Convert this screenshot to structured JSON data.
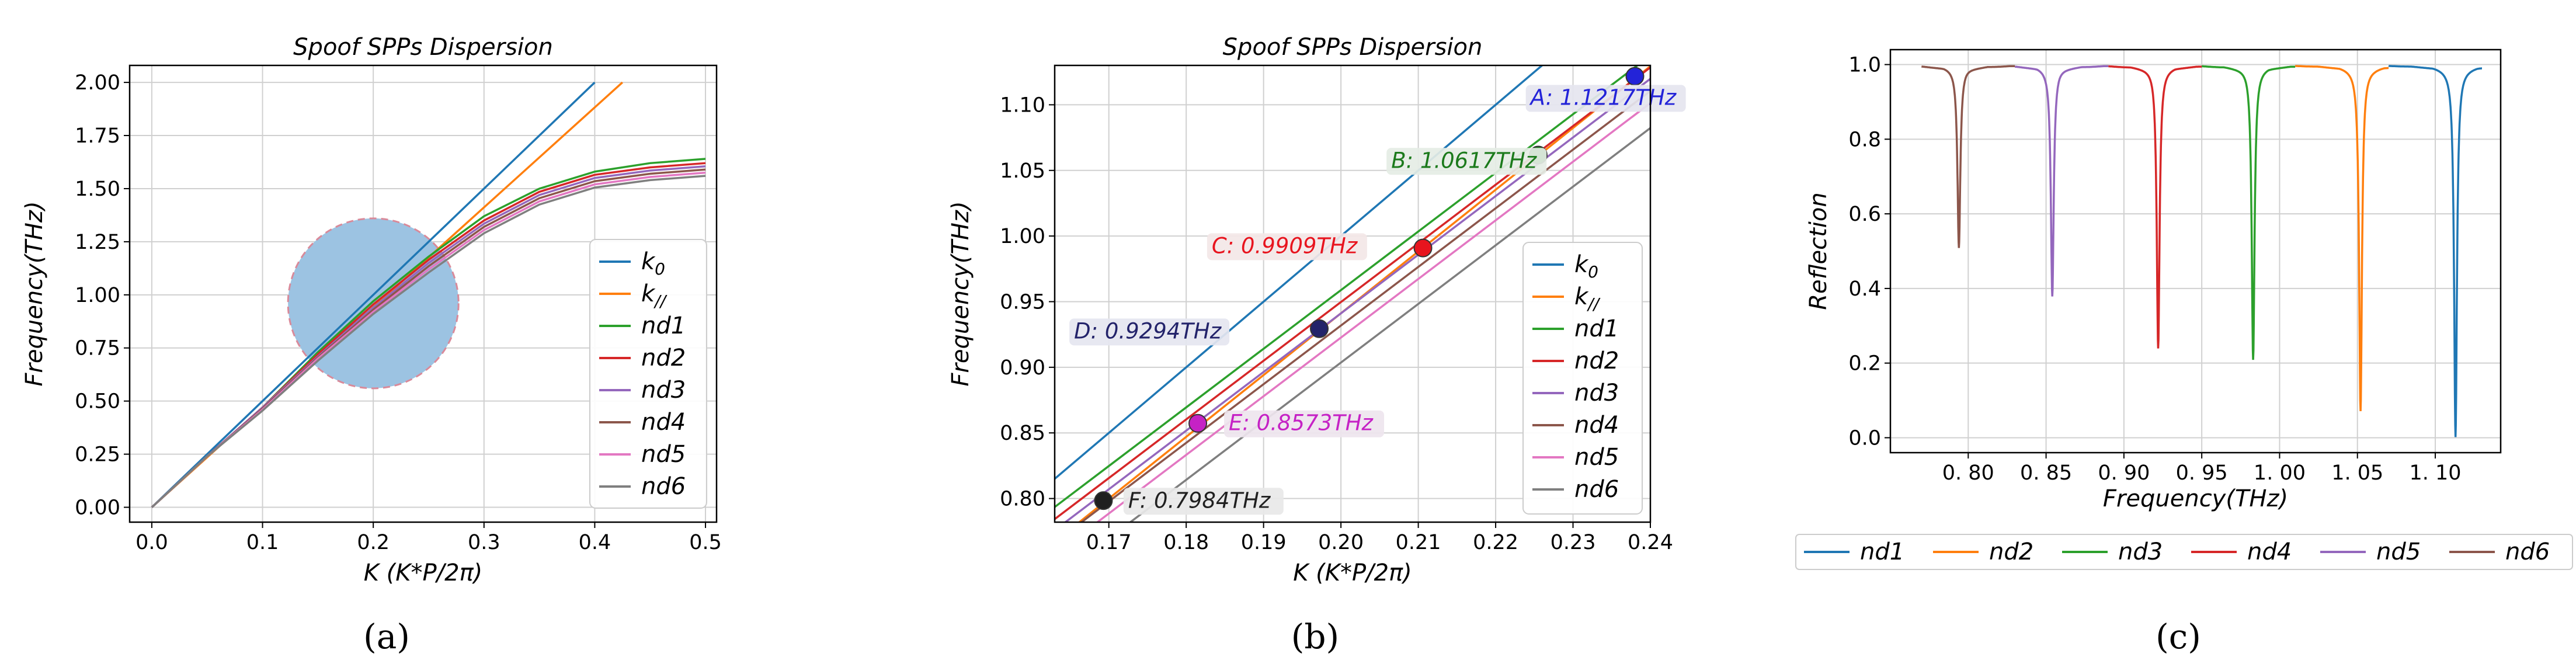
{
  "colors": {
    "c0": "#1f77b4",
    "c1": "#ff7f0e",
    "c2": "#2ca02c",
    "c3": "#d62728",
    "c4": "#9467bd",
    "c5": "#8c564b",
    "c6": "#e377c2",
    "c7": "#7f7f7f",
    "circle_fill": "#9cc3e2",
    "circle_edge": "#d98a9a",
    "grid": "#d0d0d0"
  },
  "panel_labels": [
    "(a)",
    "(b)",
    "(c)"
  ],
  "chart_data": [
    {
      "type": "line",
      "title": "Spoof SPPs Dispersion",
      "xlabel": "K (K*P/2π)",
      "ylabel": "Frequency(THz)",
      "xlim": [
        -0.02,
        0.51
      ],
      "ylim": [
        -0.07,
        2.08
      ],
      "xticks": [
        0.0,
        0.1,
        0.2,
        0.3,
        0.4,
        0.5
      ],
      "xticklabels": [
        "0.0",
        "0.1",
        "0.2",
        "0.3",
        "0.4",
        "0.5"
      ],
      "yticks": [
        0.0,
        0.25,
        0.5,
        0.75,
        1.0,
        1.25,
        1.5,
        1.75,
        2.0
      ],
      "yticklabels": [
        "0.00",
        "0.25",
        "0.50",
        "0.75",
        "1.00",
        "1.25",
        "1.50",
        "1.75",
        "2.00"
      ],
      "grid": true,
      "legend_position": "lower-right",
      "legend": [
        "k₀",
        "k//",
        "nd1",
        "nd2",
        "nd3",
        "nd4",
        "nd5",
        "nd6"
      ],
      "circle": {
        "center": [
          0.2,
          0.96
        ],
        "radius_x": 0.077,
        "radius_y": 0.4
      },
      "series": [
        {
          "name": "k₀",
          "x": [
            0.0,
            0.4
          ],
          "y": [
            0.0,
            2.0
          ]
        },
        {
          "name": "k//",
          "x": [
            0.0,
            0.425
          ],
          "y": [
            0.0,
            2.0
          ]
        },
        {
          "name": "nd1",
          "x": [
            0.0,
            0.05,
            0.1,
            0.15,
            0.2,
            0.25,
            0.3,
            0.35,
            0.4,
            0.45,
            0.5
          ],
          "y": [
            0.0,
            0.24,
            0.47,
            0.73,
            0.97,
            1.18,
            1.37,
            1.5,
            1.58,
            1.62,
            1.64
          ]
        },
        {
          "name": "nd2",
          "x": [
            0.0,
            0.05,
            0.1,
            0.15,
            0.2,
            0.25,
            0.3,
            0.35,
            0.4,
            0.45,
            0.5
          ],
          "y": [
            0.0,
            0.24,
            0.47,
            0.72,
            0.955,
            1.165,
            1.35,
            1.485,
            1.565,
            1.6,
            1.62
          ]
        },
        {
          "name": "nd3",
          "x": [
            0.0,
            0.05,
            0.1,
            0.15,
            0.2,
            0.25,
            0.3,
            0.35,
            0.4,
            0.45,
            0.5
          ],
          "y": [
            0.0,
            0.24,
            0.47,
            0.71,
            0.94,
            1.15,
            1.335,
            1.47,
            1.55,
            1.585,
            1.605
          ]
        },
        {
          "name": "nd4",
          "x": [
            0.0,
            0.05,
            0.1,
            0.15,
            0.2,
            0.25,
            0.3,
            0.35,
            0.4,
            0.45,
            0.5
          ],
          "y": [
            0.0,
            0.24,
            0.465,
            0.705,
            0.93,
            1.135,
            1.32,
            1.455,
            1.535,
            1.57,
            1.59
          ]
        },
        {
          "name": "nd5",
          "x": [
            0.0,
            0.05,
            0.1,
            0.15,
            0.2,
            0.25,
            0.3,
            0.35,
            0.4,
            0.45,
            0.5
          ],
          "y": [
            0.0,
            0.24,
            0.46,
            0.7,
            0.92,
            1.12,
            1.305,
            1.44,
            1.52,
            1.555,
            1.575
          ]
        },
        {
          "name": "nd6",
          "x": [
            0.0,
            0.05,
            0.1,
            0.15,
            0.2,
            0.25,
            0.3,
            0.35,
            0.4,
            0.45,
            0.5
          ],
          "y": [
            0.0,
            0.24,
            0.455,
            0.69,
            0.91,
            1.105,
            1.29,
            1.425,
            1.505,
            1.54,
            1.56
          ]
        }
      ]
    },
    {
      "type": "line",
      "title": "Spoof SPPs Dispersion",
      "xlabel": "K (K*P/2π)",
      "ylabel": "Frequency(THz)",
      "xlim": [
        0.163,
        0.24
      ],
      "ylim": [
        0.782,
        1.13
      ],
      "xticks": [
        0.17,
        0.18,
        0.19,
        0.2,
        0.21,
        0.22,
        0.23,
        0.24
      ],
      "xticklabels": [
        "0.17",
        "0.18",
        "0.19",
        "0.20",
        "0.21",
        "0.22",
        "0.23",
        "0.24"
      ],
      "yticks": [
        0.8,
        0.85,
        0.9,
        0.95,
        1.0,
        1.05,
        1.1
      ],
      "yticklabels": [
        "0.80",
        "0.85",
        "0.90",
        "0.95",
        "1.00",
        "1.05",
        "1.10"
      ],
      "grid": true,
      "legend_position": "lower-right",
      "legend": [
        "k₀",
        "k//",
        "nd1",
        "nd2",
        "nd3",
        "nd4",
        "nd5",
        "nd6"
      ],
      "series": [
        {
          "name": "k₀",
          "x": [
            0.163,
            0.2265
          ],
          "y": [
            0.815,
            1.1325
          ]
        },
        {
          "name": "k//",
          "x": [
            0.163,
            0.24
          ],
          "y": [
            0.767,
            1.1294
          ]
        },
        {
          "name": "nd1",
          "x": [
            0.163,
            0.24
          ],
          "y": [
            0.7935,
            1.1375
          ]
        },
        {
          "name": "nd2",
          "x": [
            0.163,
            0.24
          ],
          "y": [
            0.7843,
            1.1285
          ]
        },
        {
          "name": "nd3",
          "x": [
            0.163,
            0.24
          ],
          "y": [
            0.7758,
            1.1198
          ]
        },
        {
          "name": "nd4",
          "x": [
            0.163,
            0.24
          ],
          "y": [
            0.7665,
            1.1105
          ]
        },
        {
          "name": "nd5",
          "x": [
            0.163,
            0.24
          ],
          "y": [
            0.7573,
            1.1013
          ]
        },
        {
          "name": "nd6",
          "x": [
            0.163,
            0.24
          ],
          "y": [
            0.7383,
            1.0823
          ]
        }
      ],
      "points": [
        {
          "label": "A: 1.1217THz",
          "x": 0.238,
          "y": 1.1217,
          "color": "#2323d8",
          "text_color": "#2323d8",
          "box": "#e5e5ef",
          "tx": 0.2245,
          "ty": 1.1
        },
        {
          "label": "B: 1.0617THz",
          "x": 0.2255,
          "y": 1.0617,
          "color": "#1c7a1c",
          "text_color": "#1c7a1c",
          "box": "#e5ede5",
          "tx": 0.2065,
          "ty": 1.052
        },
        {
          "label": "C: 0.9909THz",
          "x": 0.2106,
          "y": 0.9909,
          "color": "#e8141e",
          "text_color": "#e8141e",
          "box": "#f3e7e7",
          "tx": 0.1833,
          "ty": 0.987
        },
        {
          "label": "D: 0.9294THz",
          "x": 0.1972,
          "y": 0.9294,
          "color": "#23236a",
          "text_color": "#23236a",
          "box": "#e5e6f0",
          "tx": 0.1655,
          "ty": 0.922
        },
        {
          "label": "E: 0.8573THz",
          "x": 0.1815,
          "y": 0.8573,
          "color": "#c522c5",
          "text_color": "#c522c5",
          "box": "#eee5ee",
          "tx": 0.1855,
          "ty": 0.852
        },
        {
          "label": "F: 0.7984THz",
          "x": 0.1693,
          "y": 0.7984,
          "color": "#202020",
          "text_color": "#202020",
          "box": "#e8e8e8",
          "tx": 0.1725,
          "ty": 0.793
        }
      ]
    },
    {
      "type": "line",
      "xlabel": "Frequency(THz)",
      "ylabel": "Reflection",
      "xlim": [
        0.75,
        1.142
      ],
      "ylim": [
        -0.04,
        1.04
      ],
      "xticks": [
        0.8,
        0.85,
        0.9,
        0.95,
        1.0,
        1.05,
        1.1
      ],
      "xticklabels": [
        "0. 80",
        "0. 85",
        "0. 90",
        "0. 95",
        "1. 00",
        "1. 05",
        "1. 10"
      ],
      "yticks": [
        0.0,
        0.2,
        0.4,
        0.6,
        0.8,
        1.0
      ],
      "yticklabels": [
        "0.0",
        "0.2",
        "0.4",
        "0.6",
        "0.8",
        "1.0"
      ],
      "grid": true,
      "legend_position": "bottom",
      "legend": [
        "nd1",
        "nd2",
        "nd3",
        "nd4",
        "nd5",
        "nd6"
      ],
      "series": [
        {
          "name": "nd1",
          "x_range": [
            1.07,
            1.13
          ],
          "dip_x": 1.113,
          "dip_y": 0.01
        },
        {
          "name": "nd2",
          "x_range": [
            1.01,
            1.07
          ],
          "dip_x": 1.052,
          "dip_y": 0.08
        },
        {
          "name": "nd3",
          "x_range": [
            0.95,
            1.01
          ],
          "dip_x": 0.983,
          "dip_y": 0.22
        },
        {
          "name": "nd4",
          "x_range": [
            0.89,
            0.95
          ],
          "dip_x": 0.922,
          "dip_y": 0.25
        },
        {
          "name": "nd5",
          "x_range": [
            0.83,
            0.89
          ],
          "dip_x": 0.854,
          "dip_y": 0.39
        },
        {
          "name": "nd6",
          "x_range": [
            0.77,
            0.83
          ],
          "dip_x": 0.794,
          "dip_y": 0.52
        }
      ]
    }
  ]
}
